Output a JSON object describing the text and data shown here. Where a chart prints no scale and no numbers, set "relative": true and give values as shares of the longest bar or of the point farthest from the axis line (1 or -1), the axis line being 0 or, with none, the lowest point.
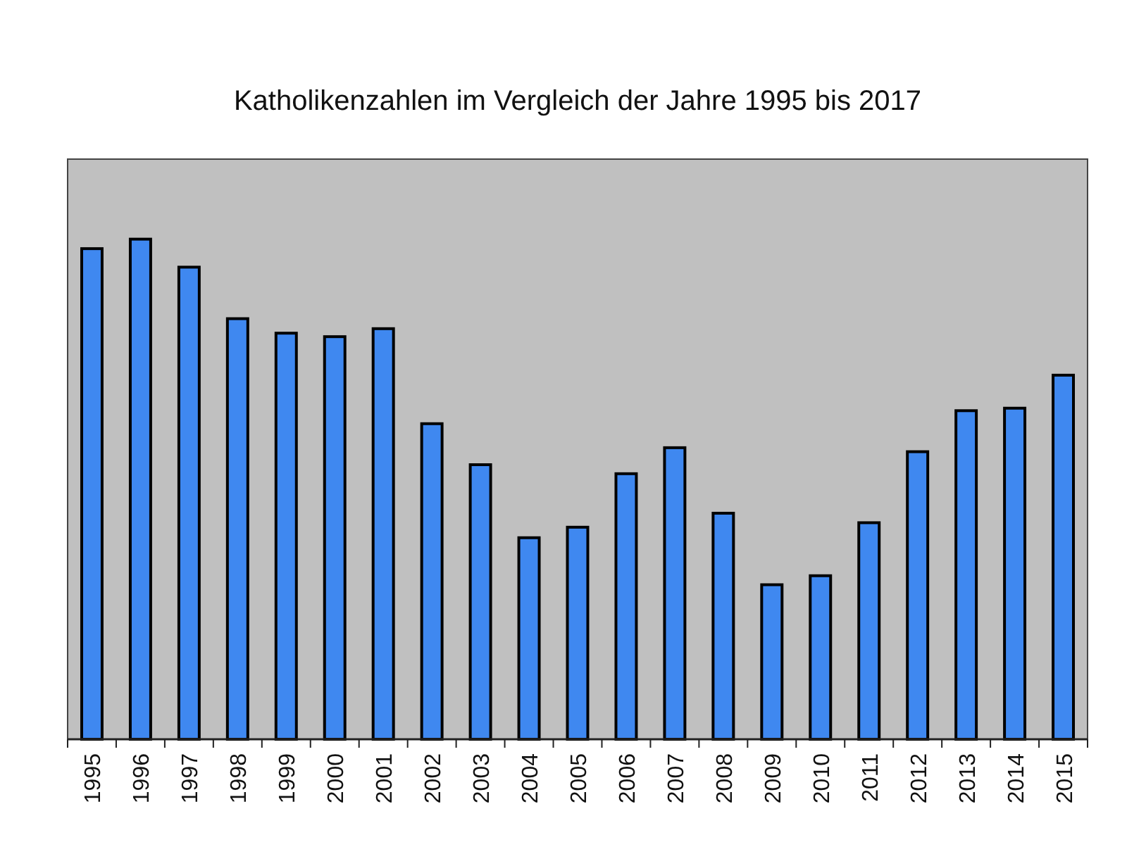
{
  "chart_data": {
    "type": "bar",
    "title": "Katholikenzahlen im Vergleich der Jahre 1995 bis 2017",
    "categories": [
      "1995",
      "1996",
      "1997",
      "1998",
      "1999",
      "2000",
      "2001",
      "2002",
      "2003",
      "2004",
      "2005",
      "2006",
      "2007",
      "2008",
      "2009",
      "2010",
      "2011",
      "2012",
      "2013",
      "2014",
      "2015"
    ],
    "values": [
      0.981,
      1,
      0.944,
      0.841,
      0.812,
      0.805,
      0.821,
      0.631,
      0.549,
      0.403,
      0.424,
      0.531,
      0.583,
      0.452,
      0.309,
      0.327,
      0.433,
      0.575,
      0.657,
      0.662,
      0.728
    ],
    "color": "#3f88f0",
    "relative": true
  }
}
